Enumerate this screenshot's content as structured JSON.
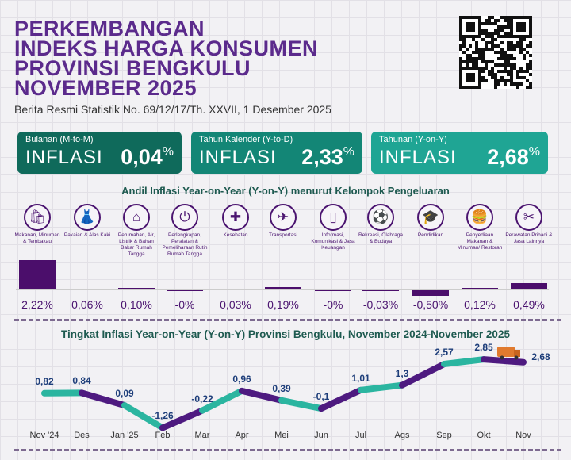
{
  "header": {
    "title_lines": [
      "PERKEMBANGAN",
      "INDEKS HARGA KONSUMEN",
      "PROVINSI BENGKULU",
      "NOVEMBER 2025"
    ],
    "subtitle": "Berita Resmi Statistik No. 69/12/17/Th. XXVII, 1 Desember 2025"
  },
  "cards": [
    {
      "label": "Bulanan (M-to-M)",
      "word": "INFLASI",
      "value": "0,04",
      "unit": "%",
      "color": "#0f6a5b"
    },
    {
      "label": "Tahun Kalender (Y-to-D)",
      "word": "INFLASI",
      "value": "2,33",
      "unit": "%",
      "color": "#138676"
    },
    {
      "label": "Tahunan (Y-on-Y)",
      "word": "INFLASI",
      "value": "2,68",
      "unit": "%",
      "color": "#1fa594"
    }
  ],
  "chart_data": [
    {
      "type": "bar",
      "title": "Andil Inflasi Year-on-Year (Y-on-Y) menurut Kelompok Pengeluaran",
      "categories": [
        "Makanan, Minuman & Tembakau",
        "Pakaian & Alas Kaki",
        "Perumahan, Air, Listrik & Bahan Bakar Rumah Tangga",
        "Perlengkapan, Peralatan & Pemeliharaan Rutin Rumah Tangga",
        "Kesehatan",
        "Transportasi",
        "Informasi, Komunikasi & Jasa Keuangan",
        "Rekreasi, Olahraga & Budaya",
        "Pendidikan",
        "Penyediaan Makanan & Minuman/ Restoran",
        "Perawatan Pribadi & Jasa Lainnya"
      ],
      "values": [
        2.22,
        0.06,
        0.1,
        -0.001,
        0.03,
        0.19,
        -0.001,
        -0.03,
        -0.5,
        0.12,
        0.49
      ],
      "labels": [
        "2,22%",
        "0,06%",
        "0,10%",
        "-0%",
        "0,03%",
        "0,19%",
        "-0%",
        "-0,03%",
        "-0,50%",
        "0,12%",
        "0,49%"
      ],
      "icons": [
        "grocery-bag-icon",
        "dress-icon",
        "house-icon",
        "plug-icon",
        "medical-kit-icon",
        "airplane-icon",
        "smartphone-icon",
        "football-player-icon",
        "graduation-cap-icon",
        "food-drink-icon",
        "scissors-comb-icon"
      ],
      "color": "#4b0e6b"
    },
    {
      "type": "line",
      "title": "Tingkat Inflasi Year-on-Year (Y-on-Y) Provinsi Bengkulu, November 2024-November 2025",
      "x": [
        "Nov '24",
        "Des",
        "Jan '25",
        "Feb",
        "Mar",
        "Apr",
        "Mei",
        "Jun",
        "Jul",
        "Ags",
        "Sep",
        "Okt",
        "Nov"
      ],
      "values": [
        0.82,
        0.84,
        0.09,
        -1.26,
        -0.22,
        0.96,
        0.39,
        -0.1,
        1.01,
        1.3,
        2.57,
        2.85,
        2.68
      ],
      "labels": [
        "0,82",
        "0,84",
        "0,09",
        "-1,26",
        "-0,22",
        "0,96",
        "0,39",
        "-0,1",
        "1,01",
        "1,3",
        "2,57",
        "2,85",
        "2,68"
      ],
      "colors": [
        "#2bb5a0",
        "#4e1a80"
      ]
    }
  ]
}
